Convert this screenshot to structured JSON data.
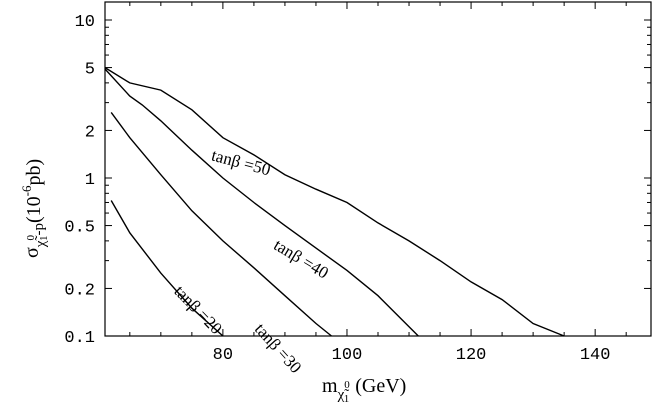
{
  "chart_data": {
    "type": "line",
    "x_axis_label": {
      "main": "m",
      "sub": "χ̃",
      "sub_sup": "0",
      "sub_sub": "1",
      "unit": "(GeV)"
    },
    "y_axis_label": {
      "main": "σ",
      "sub": "χ̃",
      "sub_sup": "0",
      "sub_sub": "1",
      "sub_tail": "-p",
      "unit_open": "(10",
      "unit_exp": "-6",
      "unit_close": "pb)"
    },
    "y_scale": "log",
    "xlim": [
      61,
      149
    ],
    "ylim": [
      0.1,
      13
    ],
    "x_ticks": [
      80,
      100,
      120,
      140
    ],
    "x_tick_labels": [
      "80",
      "100",
      "120",
      "140"
    ],
    "y_ticks": [
      0.1,
      0.2,
      0.5,
      1,
      2,
      5,
      10
    ],
    "y_tick_labels": [
      "0.1",
      "0.2",
      "0.5",
      "1",
      "2",
      "5",
      "10"
    ],
    "series": [
      {
        "name": "tanβ =50",
        "label_pos": {
          "x": 78,
          "y": 1.3
        },
        "label_angle": 15,
        "x": [
          61,
          65,
          70,
          75,
          80,
          85,
          90,
          95,
          100,
          105,
          110,
          115,
          120,
          125,
          130,
          135
        ],
        "y": [
          5.0,
          4.0,
          3.6,
          2.7,
          1.8,
          1.4,
          1.05,
          0.85,
          0.7,
          0.52,
          0.4,
          0.3,
          0.22,
          0.17,
          0.12,
          0.1
        ]
      },
      {
        "name": "tanβ =40",
        "label_pos": {
          "x": 88,
          "y": 0.36
        },
        "label_angle": 31,
        "x": [
          61,
          65,
          67,
          70,
          75,
          80,
          85,
          90,
          95,
          100,
          105,
          111.5
        ],
        "y": [
          4.9,
          3.3,
          2.9,
          2.3,
          1.5,
          1.0,
          0.7,
          0.5,
          0.36,
          0.26,
          0.18,
          0.1
        ]
      },
      {
        "name": "tanβ =30",
        "label_pos": {
          "x": 85,
          "y": 0.11
        },
        "label_angle": 48,
        "x": [
          62,
          65,
          70,
          75,
          80,
          85,
          90,
          95,
          97.5
        ],
        "y": [
          2.6,
          1.8,
          1.05,
          0.62,
          0.4,
          0.27,
          0.18,
          0.12,
          0.1
        ]
      },
      {
        "name": "tanβ =20",
        "label_pos": {
          "x": 72,
          "y": 0.19
        },
        "label_angle": 46,
        "x": [
          62,
          65,
          70,
          75,
          80
        ],
        "y": [
          0.72,
          0.45,
          0.25,
          0.15,
          0.1
        ]
      }
    ],
    "grid": false,
    "legend": "none (labels inline on curves)"
  }
}
